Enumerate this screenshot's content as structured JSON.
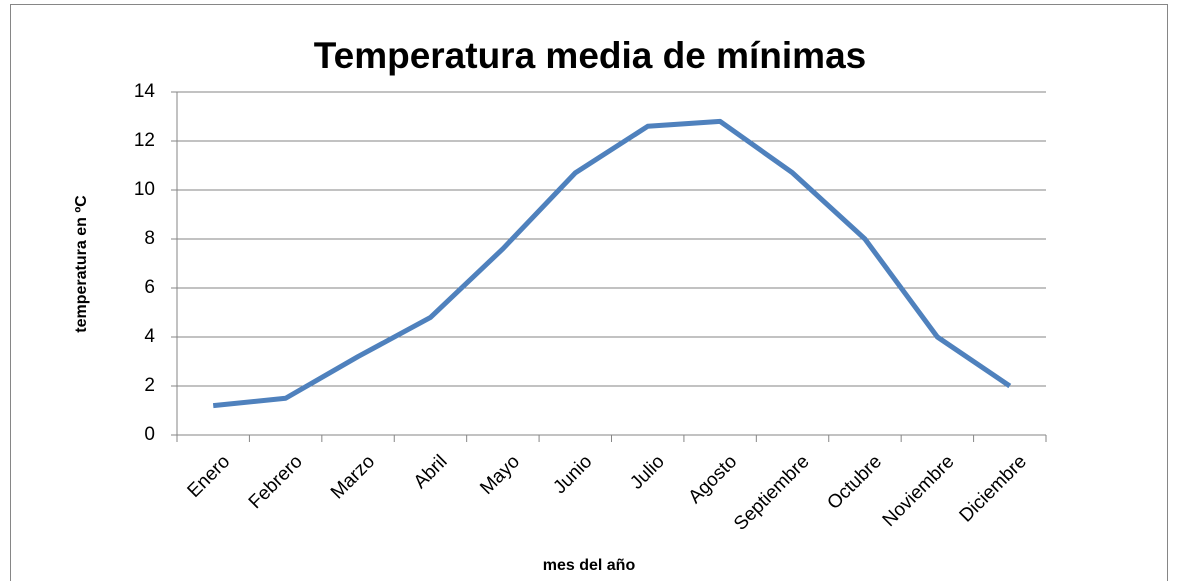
{
  "chart_data": {
    "type": "line",
    "title": "Temperatura media de mínimas",
    "x_label": "mes del año",
    "y_label": "temperatura en ºC",
    "categories": [
      "Enero",
      "Febrero",
      "Marzo",
      "Abril",
      "Mayo",
      "Junio",
      "Julio",
      "Agosto",
      "Septiembre",
      "Octubre",
      "Noviembre",
      "Diciembre"
    ],
    "values": [
      1.2,
      1.5,
      3.2,
      4.8,
      7.6,
      10.7,
      12.6,
      12.8,
      10.7,
      8.0,
      4.0,
      2.0
    ],
    "color": "#4f81bd",
    "ylim": [
      0,
      14
    ],
    "yticks": [
      0,
      2,
      4,
      6,
      8,
      10,
      12,
      14
    ],
    "grid": true
  }
}
